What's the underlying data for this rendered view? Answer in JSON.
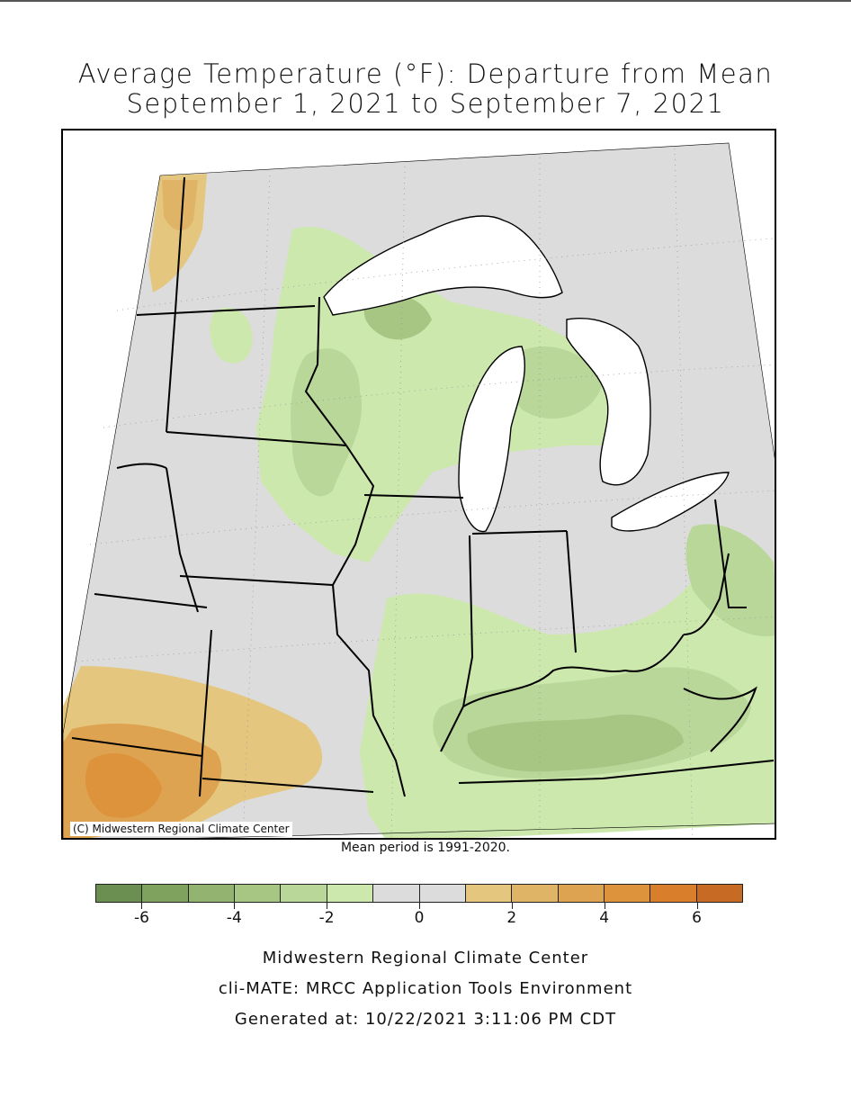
{
  "title": {
    "line1": "Average Temperature (°F): Departure from Mean",
    "line2": "September 1, 2021 to September 7, 2021"
  },
  "map": {
    "copyright": "(C) Midwestern Regional Climate Center",
    "region": "US Midwest",
    "projection_note": "conic projection with state boundaries, Great Lakes in white"
  },
  "mean_note": "Mean period is 1991-2020.",
  "legend": {
    "bins": [
      {
        "range": [
          -7,
          -6
        ],
        "color": "#6b8f50"
      },
      {
        "range": [
          -6,
          -5
        ],
        "color": "#7fa25e"
      },
      {
        "range": [
          -5,
          -4
        ],
        "color": "#93b470"
      },
      {
        "range": [
          -4,
          -3
        ],
        "color": "#a7c684"
      },
      {
        "range": [
          -3,
          -2
        ],
        "color": "#b9d798"
      },
      {
        "range": [
          -2,
          -1
        ],
        "color": "#cce8ad"
      },
      {
        "range": [
          -1,
          0
        ],
        "color": "#dcdcdc"
      },
      {
        "range": [
          0,
          1
        ],
        "color": "#dcdcdc"
      },
      {
        "range": [
          1,
          2
        ],
        "color": "#e4c67e"
      },
      {
        "range": [
          2,
          3
        ],
        "color": "#e0b467"
      },
      {
        "range": [
          3,
          4
        ],
        "color": "#dea351"
      },
      {
        "range": [
          4,
          5
        ],
        "color": "#dd923c"
      },
      {
        "range": [
          5,
          6
        ],
        "color": "#d97f2b"
      },
      {
        "range": [
          6,
          7
        ],
        "color": "#c66a24"
      }
    ],
    "tick_labels": [
      "-6",
      "-4",
      "-2",
      "0",
      "2",
      "4",
      "6"
    ],
    "tick_values": [
      -6,
      -4,
      -2,
      0,
      2,
      4,
      6
    ]
  },
  "footer": {
    "line1": "Midwestern Regional Climate Center",
    "line2": "cli-MATE: MRCC Application Tools Environment",
    "line3": "Generated at: 10/22/2021 3:11:06 PM CDT"
  }
}
